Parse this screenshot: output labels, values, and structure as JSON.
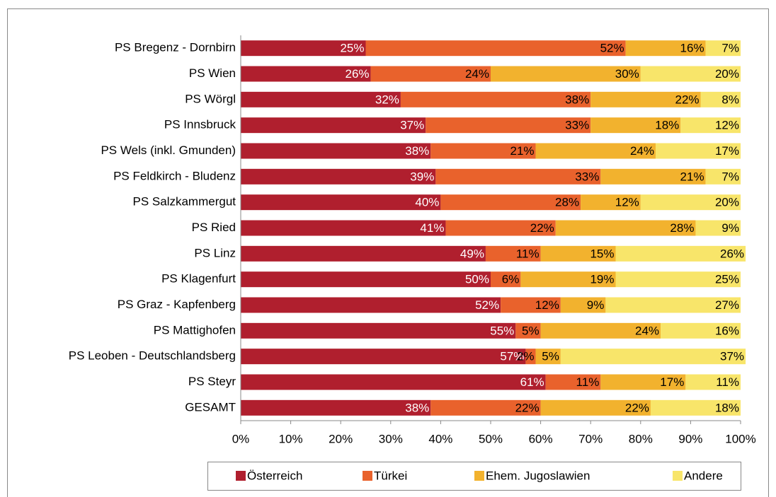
{
  "chart_data": {
    "type": "stacked-bar-horizontal",
    "categories": [
      "PS Bregenz - Dornbirn",
      "PS Wien",
      "PS Wörgl",
      "PS Innsbruck",
      "PS Wels (inkl. Gmunden)",
      "PS Feldkirch - Bludenz",
      "PS Salzkammergut",
      "PS Ried",
      "PS Linz",
      "PS Klagenfurt",
      "PS Graz - Kapfenberg",
      "PS Mattighofen",
      "PS Leoben - Deutschlandsberg",
      "PS Steyr",
      "GESAMT"
    ],
    "series": [
      {
        "name": "Österreich",
        "color": "#b01f2e",
        "values": [
          25,
          26,
          32,
          37,
          38,
          39,
          40,
          41,
          49,
          50,
          52,
          55,
          57,
          61,
          38
        ],
        "value_labels": [
          "25%",
          "26%",
          "32%",
          "37%",
          "38%",
          "39%",
          "40%",
          "41%",
          "49%",
          "50%",
          "52%",
          "55%",
          "57%",
          "61%",
          "38%"
        ]
      },
      {
        "name": "Türkei",
        "color": "#e9622c",
        "values": [
          52,
          24,
          38,
          33,
          21,
          33,
          28,
          22,
          11,
          6,
          12,
          5,
          2,
          11,
          22
        ],
        "value_labels": [
          "52%",
          "24%",
          "38%",
          "33%",
          "21%",
          "33%",
          "28%",
          "22%",
          "11%",
          "6%",
          "12%",
          "5%",
          "2%",
          "11%",
          "22%"
        ]
      },
      {
        "name": "Ehem. Jugoslawien",
        "color": "#f2b22e",
        "values": [
          16,
          30,
          22,
          18,
          24,
          21,
          12,
          28,
          15,
          19,
          9,
          24,
          5,
          17,
          22
        ],
        "value_labels": [
          "16%",
          "30%",
          "22%",
          "18%",
          "24%",
          "21%",
          "12%",
          "28%",
          "15%",
          "19%",
          "9%",
          "24%",
          "5%",
          "17%",
          "22%"
        ]
      },
      {
        "name": "Andere",
        "color": "#f8e56a",
        "values": [
          7,
          20,
          8,
          12,
          17,
          7,
          20,
          9,
          26,
          25,
          27,
          16,
          37,
          11,
          18
        ],
        "value_labels": [
          "7%",
          "20%",
          "8%",
          "12%",
          "17%",
          "7%",
          "20%",
          "9%",
          "26%",
          "25%",
          "27%",
          "16%",
          "37%",
          "11%",
          "18%"
        ]
      }
    ],
    "xlim": [
      0,
      100
    ],
    "xticks": [
      {
        "value": 0,
        "label": "0%"
      },
      {
        "value": 10,
        "label": "10%"
      },
      {
        "value": 20,
        "label": "20%"
      },
      {
        "value": 30,
        "label": "30%"
      },
      {
        "value": 40,
        "label": "40%"
      },
      {
        "value": 50,
        "label": "50%"
      },
      {
        "value": 60,
        "label": "60%"
      },
      {
        "value": 70,
        "label": "70%"
      },
      {
        "value": 80,
        "label": "80%"
      },
      {
        "value": 90,
        "label": "90%"
      },
      {
        "value": 100,
        "label": "100%"
      }
    ],
    "legend": "bottom"
  }
}
